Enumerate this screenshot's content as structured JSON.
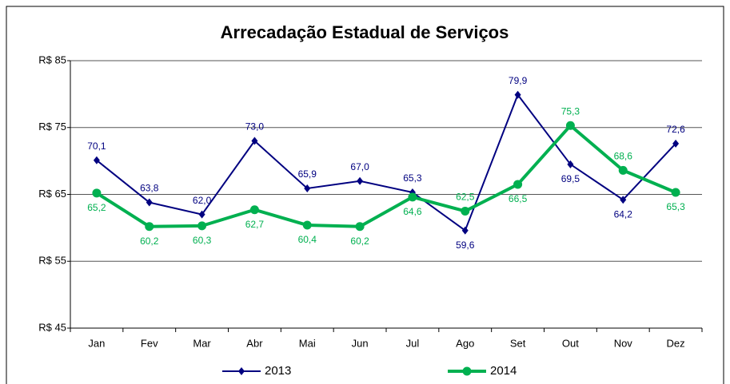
{
  "chart_data": {
    "type": "line",
    "title": "Arrecadação Estadual de Serviços",
    "categories": [
      "Jan",
      "Fev",
      "Mar",
      "Abr",
      "Mai",
      "Jun",
      "Jul",
      "Ago",
      "Set",
      "Out",
      "Nov",
      "Dez"
    ],
    "series": [
      {
        "name": "2013",
        "color": "#000080",
        "marker": "diamond",
        "values": [
          70.1,
          63.8,
          62.0,
          73.0,
          65.9,
          67.0,
          65.3,
          59.6,
          79.9,
          69.5,
          64.2,
          72.6
        ],
        "value_labels": [
          "70,1",
          "63,8",
          "62,0",
          "73,0",
          "65,9",
          "67,0",
          "65,3",
          "59,6",
          "79,9",
          "69,5",
          "64,2",
          "72,6"
        ]
      },
      {
        "name": "2014",
        "color": "#00b050",
        "marker": "circle",
        "values": [
          65.2,
          60.2,
          60.3,
          62.7,
          60.4,
          60.2,
          64.6,
          62.5,
          66.5,
          75.3,
          68.6,
          65.3
        ],
        "value_labels": [
          "65,2",
          "60,2",
          "60,3",
          "62,7",
          "60,4",
          "60,2",
          "64,6",
          "62,5",
          "66,5",
          "75,3",
          "68,6",
          "65,3"
        ]
      }
    ],
    "ylim": [
      45,
      85
    ],
    "yticks": [
      {
        "value": 45,
        "label": "R$ 45"
      },
      {
        "value": 55,
        "label": "R$ 55"
      },
      {
        "value": 65,
        "label": "R$ 65"
      },
      {
        "value": 75,
        "label": "R$ 75"
      },
      {
        "value": 85,
        "label": "R$ 85"
      }
    ],
    "grid": true,
    "legend": "bottom"
  }
}
